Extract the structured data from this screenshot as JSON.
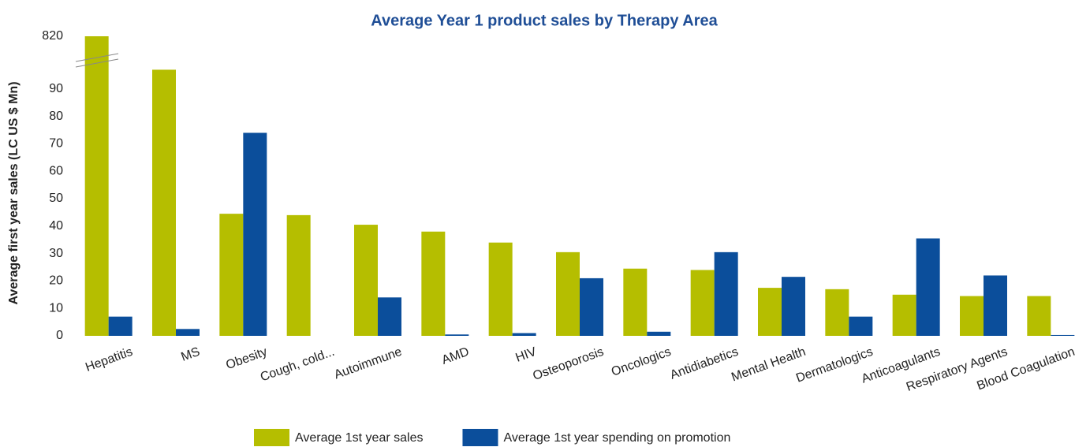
{
  "chart_data": {
    "type": "bar",
    "title": "Average Year 1 product sales by Therapy Area",
    "y_label": "Average first year sales (LC US $ Mn)",
    "categories": [
      "Hepatitis",
      "MS",
      "Obesity",
      "Cough, cold...",
      "Autoimmune",
      "AMD",
      "HIV",
      "Osteoporosis",
      "Oncologics",
      "Antidiabetics",
      "Mental Health",
      "Dermatologics",
      "Anticoagulants",
      "Respiratory Agents",
      "Blood Coagulation"
    ],
    "series": [
      {
        "name": "Average 1st year sales",
        "color": "#b5be00",
        "values": [
          820,
          97,
          44.5,
          44,
          40.5,
          38,
          34,
          30.5,
          24.5,
          24,
          17.5,
          17,
          15,
          14.5,
          14.5
        ]
      },
      {
        "name": "Average 1st year spending on promotion",
        "color": "#0b4e9b",
        "values": [
          7,
          2.5,
          74,
          null,
          14,
          0.5,
          1,
          21,
          1.5,
          30.5,
          21.5,
          7,
          35.5,
          22,
          0.3
        ]
      }
    ],
    "ylim": [
      0,
      820
    ],
    "yticks": [
      0,
      10,
      20,
      30,
      40,
      50,
      60,
      70,
      80,
      90,
      820
    ],
    "axis_break": true,
    "grid": false,
    "legend": "bottom"
  }
}
